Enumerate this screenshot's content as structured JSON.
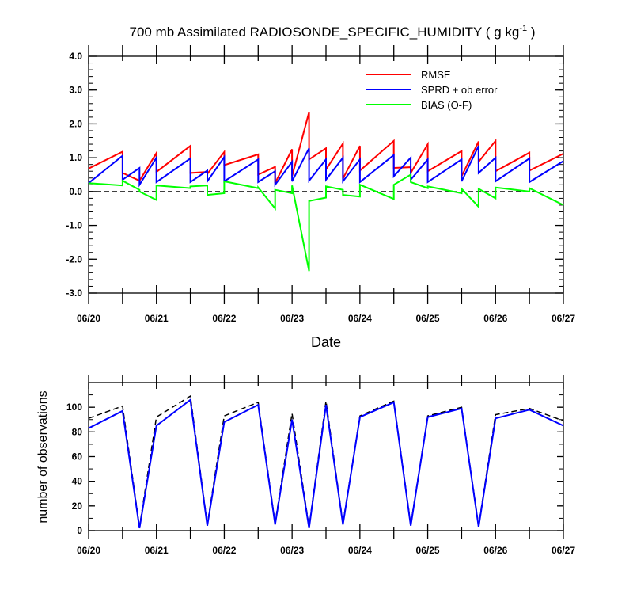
{
  "chart_data": [
    {
      "type": "line",
      "title": "700 mb Assimilated RADIOSONDE_SPECIFIC_HUMIDITY ( g kg",
      "title_sup": "-1",
      "title_end": " )",
      "xlabel": "Date",
      "ylabel": "",
      "xlim": [
        0,
        7
      ],
      "ylim": [
        -3,
        4
      ],
      "x_ticks": [
        "06/20",
        "06/21",
        "06/22",
        "06/23",
        "06/24",
        "06/25",
        "06/26",
        "06/27"
      ],
      "y_ticks": [
        "4.0",
        "3.0",
        "2.0",
        "1.0",
        "0.0",
        "-1.0",
        "-2.0",
        "-3.0"
      ],
      "zero_line": "dashed",
      "legend_position": "top-right",
      "series": [
        {
          "name": "RMSE",
          "color": "#ff0000",
          "points": [
            [
              0.0,
              0.68
            ],
            [
              0.5,
              1.18
            ],
            [
              0.5,
              0.55
            ],
            [
              0.75,
              0.32
            ],
            [
              1.0,
              1.14
            ],
            [
              1.0,
              0.58
            ],
            [
              1.5,
              1.35
            ],
            [
              1.5,
              0.55
            ],
            [
              1.75,
              0.58
            ],
            [
              1.75,
              0.52
            ],
            [
              2.0,
              1.17
            ],
            [
              2.0,
              0.78
            ],
            [
              2.5,
              1.1
            ],
            [
              2.5,
              0.5
            ],
            [
              2.75,
              0.73
            ],
            [
              2.75,
              0.25
            ],
            [
              3.0,
              1.25
            ],
            [
              3.0,
              0.45
            ],
            [
              3.25,
              2.35
            ],
            [
              3.25,
              0.95
            ],
            [
              3.5,
              1.28
            ],
            [
              3.5,
              0.65
            ],
            [
              3.75,
              1.42
            ],
            [
              3.75,
              0.38
            ],
            [
              4.0,
              1.35
            ],
            [
              4.0,
              0.62
            ],
            [
              4.5,
              1.5
            ],
            [
              4.5,
              0.7
            ],
            [
              4.75,
              0.72
            ],
            [
              4.75,
              0.55
            ],
            [
              5.0,
              1.4
            ],
            [
              5.0,
              0.6
            ],
            [
              5.5,
              1.2
            ],
            [
              5.5,
              0.45
            ],
            [
              5.75,
              1.48
            ],
            [
              5.75,
              0.88
            ],
            [
              6.0,
              1.5
            ],
            [
              6.0,
              0.6
            ],
            [
              6.5,
              1.15
            ],
            [
              6.5,
              0.62
            ],
            [
              7.0,
              1.12
            ]
          ]
        },
        {
          "name": "SPRD + ob error",
          "color": "#0000ff",
          "points": [
            [
              0.0,
              0.25
            ],
            [
              0.5,
              1.06
            ],
            [
              0.5,
              0.35
            ],
            [
              0.75,
              0.7
            ],
            [
              0.75,
              0.2
            ],
            [
              1.0,
              1.0
            ],
            [
              1.0,
              0.28
            ],
            [
              1.5,
              0.98
            ],
            [
              1.5,
              0.28
            ],
            [
              1.75,
              0.62
            ],
            [
              1.75,
              0.3
            ],
            [
              2.0,
              1.02
            ],
            [
              2.0,
              0.3
            ],
            [
              2.5,
              0.95
            ],
            [
              2.5,
              0.28
            ],
            [
              2.75,
              0.6
            ],
            [
              2.75,
              0.2
            ],
            [
              3.0,
              0.88
            ],
            [
              3.0,
              0.3
            ],
            [
              3.25,
              1.28
            ],
            [
              3.25,
              0.32
            ],
            [
              3.5,
              0.95
            ],
            [
              3.5,
              0.35
            ],
            [
              3.75,
              1.0
            ],
            [
              3.75,
              0.3
            ],
            [
              4.0,
              0.95
            ],
            [
              4.0,
              0.28
            ],
            [
              4.5,
              1.08
            ],
            [
              4.5,
              0.45
            ],
            [
              4.75,
              1.0
            ],
            [
              4.75,
              0.35
            ],
            [
              5.0,
              0.95
            ],
            [
              5.0,
              0.28
            ],
            [
              5.5,
              0.95
            ],
            [
              5.5,
              0.3
            ],
            [
              5.75,
              1.35
            ],
            [
              5.75,
              0.55
            ],
            [
              6.0,
              1.0
            ],
            [
              6.0,
              0.3
            ],
            [
              6.5,
              0.98
            ],
            [
              6.5,
              0.28
            ],
            [
              7.0,
              0.9
            ]
          ]
        },
        {
          "name": "BIAS (O-F)",
          "color": "#00ff00",
          "points": [
            [
              0.0,
              0.25
            ],
            [
              0.5,
              0.18
            ],
            [
              0.5,
              0.32
            ],
            [
              0.75,
              0.05
            ],
            [
              0.75,
              0.0
            ],
            [
              1.0,
              -0.25
            ],
            [
              1.0,
              0.18
            ],
            [
              1.5,
              0.1
            ],
            [
              1.5,
              0.15
            ],
            [
              1.75,
              0.18
            ],
            [
              1.75,
              -0.1
            ],
            [
              2.0,
              -0.05
            ],
            [
              2.0,
              0.3
            ],
            [
              2.5,
              0.1
            ],
            [
              2.5,
              0.12
            ],
            [
              2.75,
              -0.5
            ],
            [
              2.75,
              0.05
            ],
            [
              3.0,
              -0.05
            ],
            [
              3.0,
              0.18
            ],
            [
              3.25,
              -2.35
            ],
            [
              3.25,
              -0.28
            ],
            [
              3.5,
              -0.18
            ],
            [
              3.5,
              0.15
            ],
            [
              3.75,
              0.05
            ],
            [
              3.75,
              -0.1
            ],
            [
              4.0,
              -0.15
            ],
            [
              4.0,
              0.2
            ],
            [
              4.5,
              -0.22
            ],
            [
              4.5,
              0.2
            ],
            [
              4.75,
              0.5
            ],
            [
              4.75,
              0.28
            ],
            [
              5.0,
              0.1
            ],
            [
              5.0,
              0.15
            ],
            [
              5.5,
              -0.05
            ],
            [
              5.5,
              0.08
            ],
            [
              5.75,
              -0.45
            ],
            [
              5.75,
              0.08
            ],
            [
              6.0,
              -0.2
            ],
            [
              6.0,
              0.12
            ],
            [
              6.5,
              0.0
            ],
            [
              6.5,
              0.1
            ],
            [
              7.0,
              -0.4
            ]
          ]
        }
      ]
    },
    {
      "type": "line",
      "xlabel": "",
      "ylabel": "number of observations",
      "xlim": [
        0,
        7
      ],
      "ylim": [
        0,
        120
      ],
      "x_ticks": [
        "06/20",
        "06/21",
        "06/22",
        "06/23",
        "06/24",
        "06/25",
        "06/26",
        "06/27"
      ],
      "y_ticks": [
        "100",
        "80",
        "60",
        "40",
        "20",
        "0"
      ],
      "series": [
        {
          "color": "#000000",
          "dashed": true,
          "x": [
            0,
            0.5,
            0.75,
            1.0,
            1.5,
            1.75,
            2.0,
            2.5,
            2.75,
            3.0,
            3.25,
            3.5,
            3.75,
            4.0,
            4.5,
            4.75,
            5.0,
            5.5,
            5.75,
            6.0,
            6.5,
            7.0
          ],
          "values": [
            91,
            101,
            3,
            92,
            109,
            5,
            93,
            104,
            6,
            95,
            3,
            105,
            6,
            93,
            105,
            5,
            93,
            100,
            4,
            94,
            99,
            89
          ]
        },
        {
          "color": "#0000ff",
          "dashed": false,
          "x": [
            0,
            0.5,
            0.75,
            1.0,
            1.5,
            1.75,
            2.0,
            2.5,
            2.75,
            3.0,
            3.25,
            3.5,
            3.75,
            4.0,
            4.5,
            4.75,
            5.0,
            5.5,
            5.75,
            6.0,
            6.5,
            7.0
          ],
          "values": [
            83,
            97,
            2,
            85,
            106,
            4,
            88,
            102,
            5,
            90,
            2,
            102,
            5,
            92,
            104,
            4,
            92,
            99,
            3,
            91,
            98,
            85
          ]
        }
      ]
    }
  ]
}
